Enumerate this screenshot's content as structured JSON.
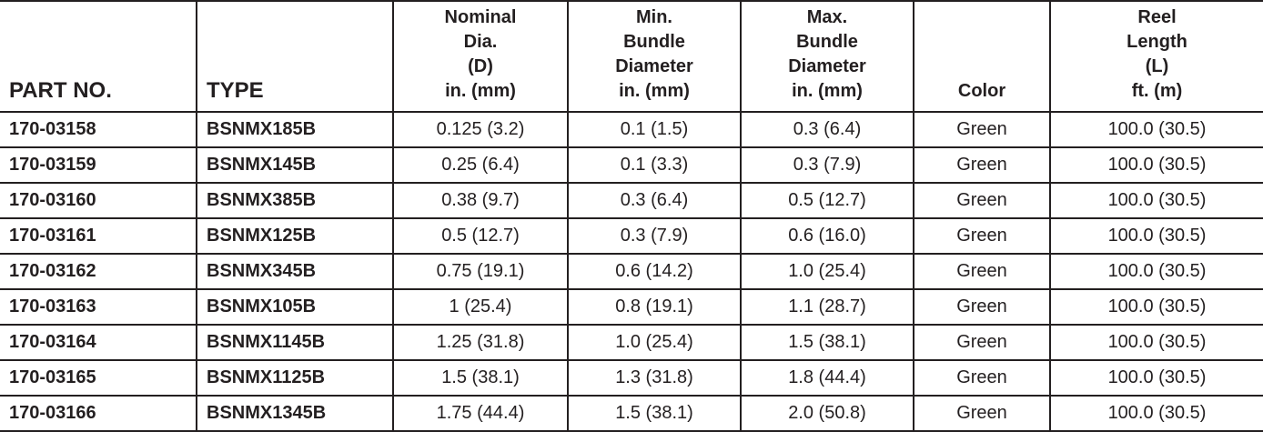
{
  "table": {
    "headers": [
      "PART NO.",
      "TYPE",
      "Nominal\nDia.\n(D)\nin. (mm)",
      "Min.\nBundle\nDiameter\nin. (mm)",
      "Max.\nBundle\nDiameter\nin. (mm)",
      "Color",
      "Reel\nLength\n(L)\nft. (m)"
    ],
    "rows": [
      [
        "170-03158",
        "BSNMX185B",
        "0.125 (3.2)",
        "0.1 (1.5)",
        "0.3 (6.4)",
        "Green",
        "100.0 (30.5)"
      ],
      [
        "170-03159",
        "BSNMX145B",
        "0.25 (6.4)",
        "0.1 (3.3)",
        "0.3 (7.9)",
        "Green",
        "100.0 (30.5)"
      ],
      [
        "170-03160",
        "BSNMX385B",
        "0.38 (9.7)",
        "0.3 (6.4)",
        "0.5 (12.7)",
        "Green",
        "100.0 (30.5)"
      ],
      [
        "170-03161",
        "BSNMX125B",
        "0.5 (12.7)",
        "0.3 (7.9)",
        "0.6 (16.0)",
        "Green",
        "100.0 (30.5)"
      ],
      [
        "170-03162",
        "BSNMX345B",
        "0.75 (19.1)",
        "0.6 (14.2)",
        "1.0 (25.4)",
        "Green",
        "100.0 (30.5)"
      ],
      [
        "170-03163",
        "BSNMX105B",
        "1 (25.4)",
        "0.8 (19.1)",
        "1.1 (28.7)",
        "Green",
        "100.0 (30.5)"
      ],
      [
        "170-03164",
        "BSNMX1145B",
        "1.25 (31.8)",
        "1.0 (25.4)",
        "1.5 (38.1)",
        "Green",
        "100.0 (30.5)"
      ],
      [
        "170-03165",
        "BSNMX1125B",
        "1.5 (38.1)",
        "1.3 (31.8)",
        "1.8 (44.4)",
        "Green",
        "100.0 (30.5)"
      ],
      [
        "170-03166",
        "BSNMX1345B",
        "1.75 (44.4)",
        "1.5 (38.1)",
        "2.0 (50.8)",
        "Green",
        "100.0 (30.5)"
      ]
    ]
  }
}
